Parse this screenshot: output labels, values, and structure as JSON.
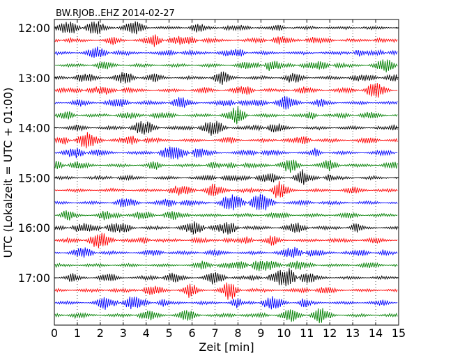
{
  "chart_data": {
    "type": "line",
    "title": "BW.RJOB..EHZ 2014-02-27",
    "xlabel": "Zeit  [min]",
    "ylabel": "UTC (Lokalzeit = UTC + 01:00)",
    "xlim": [
      0,
      15
    ],
    "x_ticks": [
      0,
      1,
      2,
      3,
      4,
      5,
      6,
      7,
      8,
      9,
      10,
      11,
      12,
      13,
      14,
      15
    ],
    "x_tick_labels": [
      "0",
      "1",
      "2",
      "3",
      "4",
      "5",
      "6",
      "7",
      "8",
      "9",
      "10",
      "11",
      "12",
      "13",
      "14",
      "15"
    ],
    "y_tick_labels": [
      "12:00",
      "13:00",
      "14:00",
      "15:00",
      "16:00",
      "17:00"
    ],
    "trace_interval_minutes": 15,
    "first_trace": "12:00",
    "trace_count": 24,
    "trace_color_cycle": [
      "#000000",
      "#ff0000",
      "#0000ff",
      "#008000"
    ],
    "grid": "vertical dotted",
    "style": "dayplot"
  }
}
